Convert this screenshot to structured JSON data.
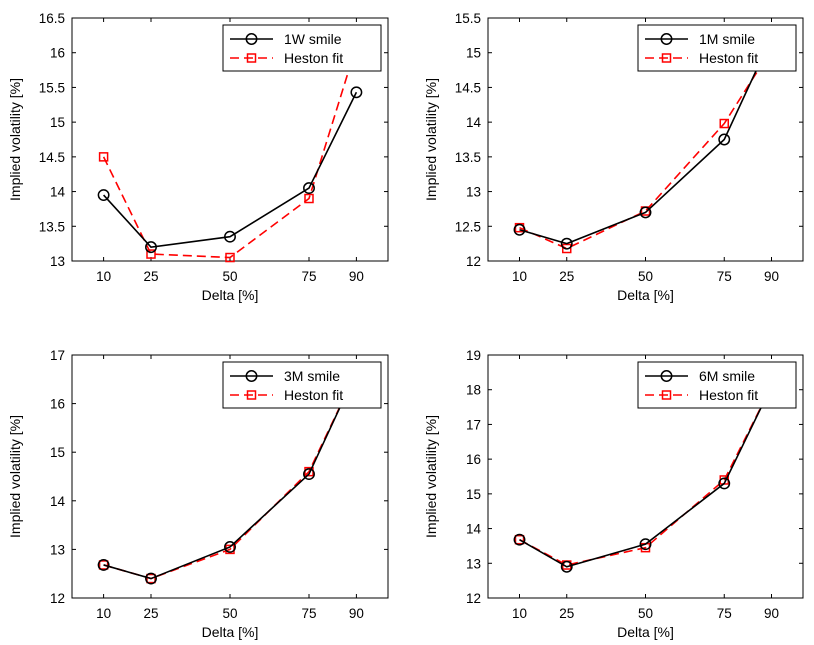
{
  "chart_data": [
    {
      "type": "line",
      "categories": [
        "10",
        "25",
        "50",
        "75",
        "90"
      ],
      "x": [
        10,
        25,
        50,
        75,
        90
      ],
      "xlim": [
        0,
        100
      ],
      "ylim": [
        13,
        16.5
      ],
      "yticks": [
        "13",
        "13.5",
        "14",
        "14.5",
        "15",
        "15.5",
        "16",
        "16.5"
      ],
      "xlabel": "Delta [%]",
      "ylabel": "Implied volatility [%]",
      "legend_position": "top-right",
      "series": [
        {
          "name": "1W smile",
          "color": "#000000",
          "marker": "circle",
          "style": "solid",
          "values": [
            13.95,
            13.2,
            13.35,
            14.05,
            15.43
          ]
        },
        {
          "name": "Heston fit",
          "color": "#ff0000",
          "marker": "square",
          "style": "dashed",
          "values": [
            14.5,
            13.1,
            13.05,
            13.9,
            16.1
          ]
        }
      ]
    },
    {
      "type": "line",
      "categories": [
        "10",
        "25",
        "50",
        "75",
        "90"
      ],
      "x": [
        10,
        25,
        50,
        75,
        90
      ],
      "xlim": [
        0,
        100
      ],
      "ylim": [
        12,
        15.5
      ],
      "yticks": [
        "12",
        "12.5",
        "13",
        "13.5",
        "14",
        "14.5",
        "15",
        "15.5"
      ],
      "xlabel": "Delta [%]",
      "ylabel": "Implied volatility [%]",
      "legend_position": "top-right",
      "series": [
        {
          "name": "1M smile",
          "color": "#000000",
          "marker": "circle",
          "style": "solid",
          "values": [
            12.45,
            12.25,
            12.7,
            13.75,
            15.22
          ]
        },
        {
          "name": "Heston fit",
          "color": "#ff0000",
          "marker": "square",
          "style": "dashed",
          "values": [
            12.48,
            12.18,
            12.72,
            13.98,
            15.05
          ]
        }
      ]
    },
    {
      "type": "line",
      "categories": [
        "10",
        "25",
        "50",
        "75",
        "90"
      ],
      "x": [
        10,
        25,
        50,
        75,
        90
      ],
      "xlim": [
        0,
        100
      ],
      "ylim": [
        12,
        17
      ],
      "yticks": [
        "12",
        "13",
        "14",
        "15",
        "16",
        "17"
      ],
      "xlabel": "Delta [%]",
      "ylabel": "Implied volatility [%]",
      "legend_position": "top-right",
      "series": [
        {
          "name": "3M smile",
          "color": "#000000",
          "marker": "circle",
          "style": "solid",
          "values": [
            12.68,
            12.4,
            13.05,
            14.55,
            16.65
          ]
        },
        {
          "name": "Heston fit",
          "color": "#ff0000",
          "marker": "square",
          "style": "dashed",
          "values": [
            12.68,
            12.4,
            13.0,
            14.6,
            16.65
          ]
        }
      ]
    },
    {
      "type": "line",
      "categories": [
        "10",
        "25",
        "50",
        "75",
        "90"
      ],
      "x": [
        10,
        25,
        50,
        75,
        90
      ],
      "xlim": [
        0,
        100
      ],
      "ylim": [
        12,
        19
      ],
      "yticks": [
        "12",
        "13",
        "14",
        "15",
        "16",
        "17",
        "18",
        "19"
      ],
      "xlabel": "Delta [%]",
      "ylabel": "Implied volatility [%]",
      "legend_position": "top-right",
      "series": [
        {
          "name": "6M smile",
          "color": "#000000",
          "marker": "circle",
          "style": "solid",
          "values": [
            13.68,
            12.9,
            13.55,
            15.3,
            18.1
          ]
        },
        {
          "name": "Heston fit",
          "color": "#ff0000",
          "marker": "square",
          "style": "dashed",
          "values": [
            13.68,
            12.95,
            13.45,
            15.4,
            18.1
          ]
        }
      ]
    }
  ]
}
